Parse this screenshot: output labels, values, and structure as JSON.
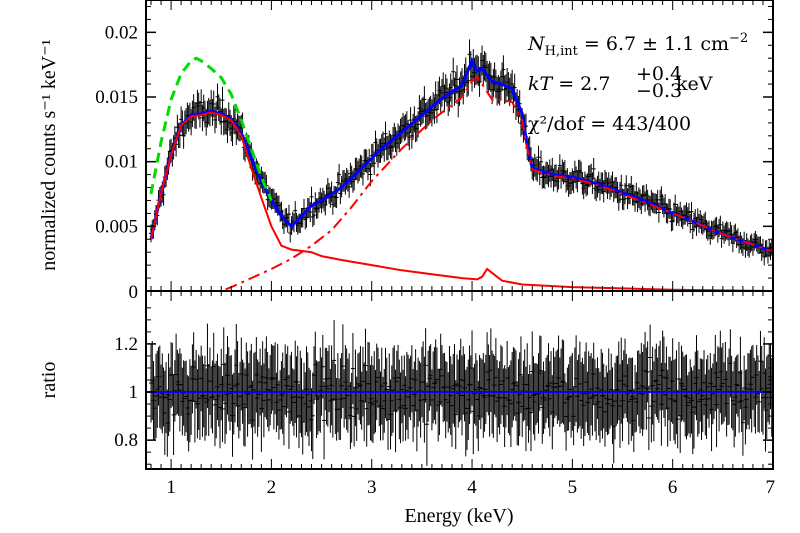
{
  "chart_data": [
    {
      "type": "line",
      "panel": "spectrum",
      "xlabel": "",
      "ylabel": "normalized counts s⁻¹ keV⁻¹",
      "xlim": [
        0.75,
        7.0
      ],
      "ylim": [
        0,
        0.0225
      ],
      "yticks": [
        0,
        0.005,
        0.01,
        0.015,
        0.02
      ],
      "ytick_labels": [
        "0",
        "0.005",
        "0.01",
        "0.015",
        "0.02"
      ],
      "legend": "none",
      "annotations": [
        "N_H,int = 6.7 ± 1.1  cm⁻²",
        "kT = 2.7 +0.4 −0.3 keV",
        "χ²/dof = 443/400"
      ],
      "annotation_parts": {
        "nh_sym": "N",
        "nh_sub": "H,int",
        "nh_val": " = 6.7 ± 1.1  cm",
        "nh_exp": "−2",
        "kt_sym": "kT",
        "kt_val": " = 2.7",
        "kt_sup": "+0.4",
        "kt_sub": "−0.3",
        "kt_unit": "keV",
        "chi_val": "χ²/dof = 443/400"
      },
      "series": [
        {
          "color": "#0000ff",
          "style": "solid",
          "x": [
            0.8,
            0.9,
            1.0,
            1.1,
            1.2,
            1.3,
            1.4,
            1.5,
            1.6,
            1.7,
            1.8,
            1.9,
            2.0,
            2.1,
            2.2,
            2.3,
            2.4,
            2.5,
            2.7,
            2.9,
            3.1,
            3.3,
            3.5,
            3.7,
            3.8,
            3.9,
            4.0,
            4.05,
            4.1,
            4.2,
            4.3,
            4.4,
            4.5,
            4.55,
            4.6,
            4.8,
            5.0,
            5.2,
            5.4,
            5.6,
            5.8,
            6.0,
            6.2,
            6.4,
            6.6,
            6.8,
            7.0
          ],
          "y": [
            0.004,
            0.0075,
            0.0105,
            0.0128,
            0.0136,
            0.0137,
            0.0139,
            0.0137,
            0.0133,
            0.0122,
            0.0103,
            0.0085,
            0.007,
            0.0058,
            0.005,
            0.0058,
            0.0066,
            0.007,
            0.008,
            0.0095,
            0.011,
            0.0123,
            0.0136,
            0.0149,
            0.0154,
            0.0159,
            0.0178,
            0.017,
            0.0172,
            0.0162,
            0.016,
            0.0156,
            0.0137,
            0.0112,
            0.0095,
            0.009,
            0.0088,
            0.0084,
            0.0079,
            0.0073,
            0.0067,
            0.006,
            0.0054,
            0.0047,
            0.0041,
            0.0036,
            0.003
          ]
        },
        {
          "color": "#ff0000",
          "style": "solid",
          "x": [
            0.8,
            0.9,
            1.0,
            1.1,
            1.2,
            1.3,
            1.4,
            1.5,
            1.6,
            1.7,
            1.8,
            1.9,
            2.0,
            2.1,
            2.2,
            2.3,
            2.4,
            2.5,
            2.7,
            3.0,
            3.3,
            3.6,
            3.9,
            4.05,
            4.1,
            4.15,
            4.2,
            4.3,
            4.5,
            5.0,
            5.5,
            6.0,
            6.5,
            7.0
          ],
          "y": [
            0.004,
            0.0075,
            0.0105,
            0.0128,
            0.0135,
            0.0136,
            0.0138,
            0.0136,
            0.0132,
            0.012,
            0.0095,
            0.0072,
            0.005,
            0.0035,
            0.0032,
            0.0031,
            0.003,
            0.0027,
            0.0024,
            0.002,
            0.0016,
            0.0013,
            0.001,
            0.0009,
            0.0011,
            0.0017,
            0.0014,
            0.0008,
            0.0005,
            0.0003,
            0.0002,
            0.0001,
            5e-05,
            0.0
          ]
        },
        {
          "color": "#ff0000",
          "style": "dash-dot",
          "x": [
            0.8,
            1.2,
            1.5,
            1.6,
            1.8,
            2.0,
            2.2,
            2.4,
            2.6,
            2.8,
            3.0,
            3.3,
            3.6,
            3.9,
            4.0,
            4.05,
            4.1,
            4.2,
            4.3,
            4.4,
            4.5,
            4.55,
            4.6,
            4.8,
            5.0,
            5.2,
            5.4,
            5.6,
            5.8,
            6.0,
            6.2,
            6.4,
            6.6,
            6.8,
            7.0
          ],
          "y": [
            0.0,
            0.0,
            0.0,
            0.0003,
            0.001,
            0.0017,
            0.0025,
            0.0035,
            0.0047,
            0.0065,
            0.0085,
            0.011,
            0.0132,
            0.015,
            0.0162,
            0.0165,
            0.016,
            0.0148,
            0.0148,
            0.0146,
            0.0132,
            0.011,
            0.0094,
            0.0089,
            0.0087,
            0.0083,
            0.0078,
            0.0072,
            0.0066,
            0.006,
            0.0054,
            0.0047,
            0.0041,
            0.0036,
            0.003
          ]
        },
        {
          "color": "#00dd00",
          "style": "dashed",
          "x": [
            0.8,
            0.9,
            1.0,
            1.1,
            1.2,
            1.25,
            1.3,
            1.4,
            1.5,
            1.6,
            1.7,
            1.8,
            1.9,
            2.0
          ],
          "y": [
            0.0075,
            0.0115,
            0.0148,
            0.0168,
            0.0178,
            0.018,
            0.0178,
            0.0172,
            0.0165,
            0.0152,
            0.0132,
            0.011,
            0.0088,
            0.007
          ]
        }
      ]
    },
    {
      "type": "scatter",
      "panel": "ratio",
      "xlabel": "Energy (keV)",
      "ylabel": "ratio",
      "xlim": [
        0.75,
        7.0
      ],
      "ylim": [
        0.68,
        1.42
      ],
      "xticks": [
        1,
        2,
        3,
        4,
        5,
        6,
        7
      ],
      "xtick_labels": [
        "1",
        "2",
        "3",
        "4",
        "5",
        "6",
        "7"
      ],
      "yticks": [
        0.8,
        1.0,
        1.2
      ],
      "ytick_labels": [
        "0.8",
        "1",
        "1.2"
      ],
      "reference_line": {
        "y": 1.0,
        "color": "#0000ff"
      },
      "data_note": "noisy residuals scattered about 1.0 with typical spread ±0.15"
    }
  ]
}
